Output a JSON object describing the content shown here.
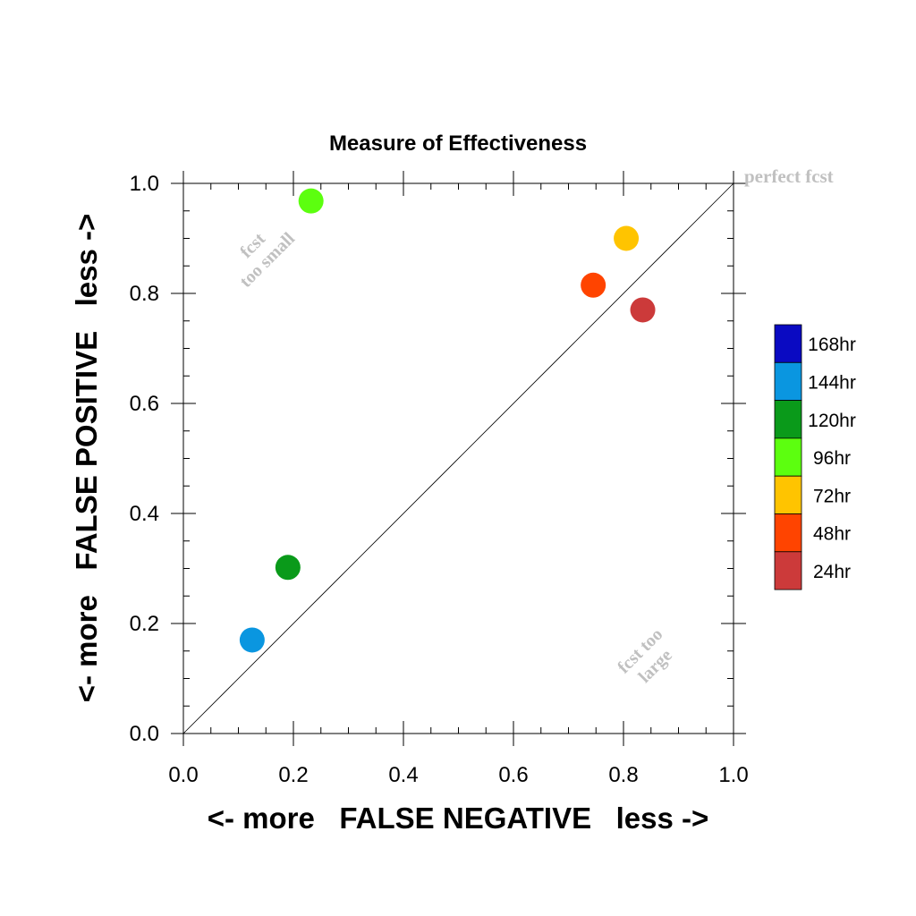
{
  "chart_data": {
    "type": "scatter",
    "title": "Measure of Effectiveness",
    "xlabel": "<- more   FALSE NEGATIVE   less ->",
    "ylabel": "<- more   FALSE POSITIVE   less ->",
    "xlim": [
      0.0,
      1.0
    ],
    "ylim": [
      0.0,
      1.0
    ],
    "x_ticks": [
      "0.0",
      "0.2",
      "0.4",
      "0.6",
      "0.8",
      "1.0"
    ],
    "y_ticks": [
      "0.0",
      "0.2",
      "0.4",
      "0.6",
      "0.8",
      "1.0"
    ],
    "grid": false,
    "reference_line": "diagonal",
    "annotations": {
      "perfect": "perfect fcst",
      "too_small_1": "fcst",
      "too_small_2": "too small",
      "too_large_1": "fcst too",
      "too_large_2": "large"
    },
    "legend_position": "right",
    "legend": [
      {
        "label": "168hr",
        "color": "#0a0ac2"
      },
      {
        "label": "144hr",
        "color": "#0a96e0"
      },
      {
        "label": "120hr",
        "color": "#0a9a1a"
      },
      {
        "label": "96hr",
        "color": "#5cff0f"
      },
      {
        "label": "72hr",
        "color": "#ffc400"
      },
      {
        "label": "48hr",
        "color": "#ff4400"
      },
      {
        "label": "24hr",
        "color": "#cc3a3a"
      }
    ],
    "points": [
      {
        "lead": "24hr",
        "x": 0.835,
        "y": 0.77,
        "color": "#cc3a3a"
      },
      {
        "lead": "48hr",
        "x": 0.745,
        "y": 0.815,
        "color": "#ff4400"
      },
      {
        "lead": "72hr",
        "x": 0.805,
        "y": 0.9,
        "color": "#ffc400"
      },
      {
        "lead": "96hr",
        "x": 0.232,
        "y": 0.968,
        "color": "#5cff0f"
      },
      {
        "lead": "120hr",
        "x": 0.19,
        "y": 0.302,
        "color": "#0a9a1a"
      },
      {
        "lead": "144hr",
        "x": 0.125,
        "y": 0.17,
        "color": "#0a96e0"
      }
    ]
  }
}
